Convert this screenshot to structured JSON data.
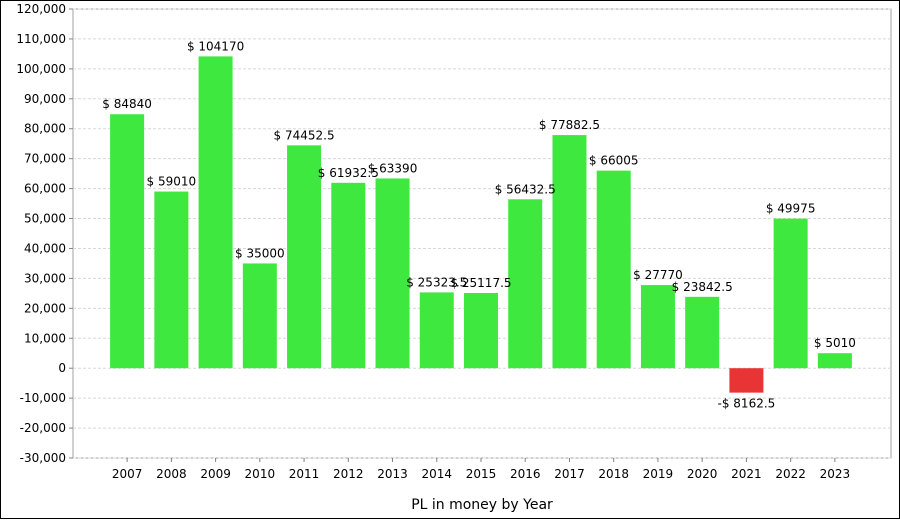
{
  "chart_data": {
    "type": "bar",
    "xlabel": "PL in money by Year",
    "ylabel": "",
    "ylim": [
      -30000,
      120000
    ],
    "yticks": [
      -30000,
      -20000,
      -10000,
      0,
      10000,
      20000,
      30000,
      40000,
      50000,
      60000,
      70000,
      80000,
      90000,
      100000,
      110000,
      120000
    ],
    "ytick_labels": [
      "-30,000",
      "-20,000",
      "-10,000",
      "0",
      "10,000",
      "20,000",
      "30,000",
      "40,000",
      "50,000",
      "60,000",
      "70,000",
      "80,000",
      "90,000",
      "100,000",
      "110,000",
      "120,000"
    ],
    "categories": [
      "2007",
      "2008",
      "2009",
      "2010",
      "2011",
      "2012",
      "2013",
      "2014",
      "2015",
      "2016",
      "2017",
      "2018",
      "2019",
      "2020",
      "2021",
      "2022",
      "2023"
    ],
    "values": [
      84840,
      59010,
      104170,
      35000,
      74452.5,
      61932.5,
      63390,
      25323.5,
      25117.5,
      56432.5,
      77882.5,
      66005,
      27770,
      23842.5,
      -8162.5,
      49975,
      5010
    ],
    "data_labels": [
      "$ 84840",
      "$ 59010",
      "$ 104170",
      "$ 35000",
      "$ 74452.5",
      "$ 61932.5",
      "$ 63390",
      "$ 25323.5",
      "$ 25117.5",
      "$ 56432.5",
      "$ 77882.5",
      "$ 66005",
      "$ 27770",
      "$ 23842.5",
      "-$ 8162.5",
      "$ 49975",
      "$ 5010"
    ],
    "grid": true,
    "colors": {
      "positive": "#3ee83e",
      "negative": "#e83434",
      "grid": "#d8d8d8",
      "plot_border": "#a0a0a0"
    }
  }
}
